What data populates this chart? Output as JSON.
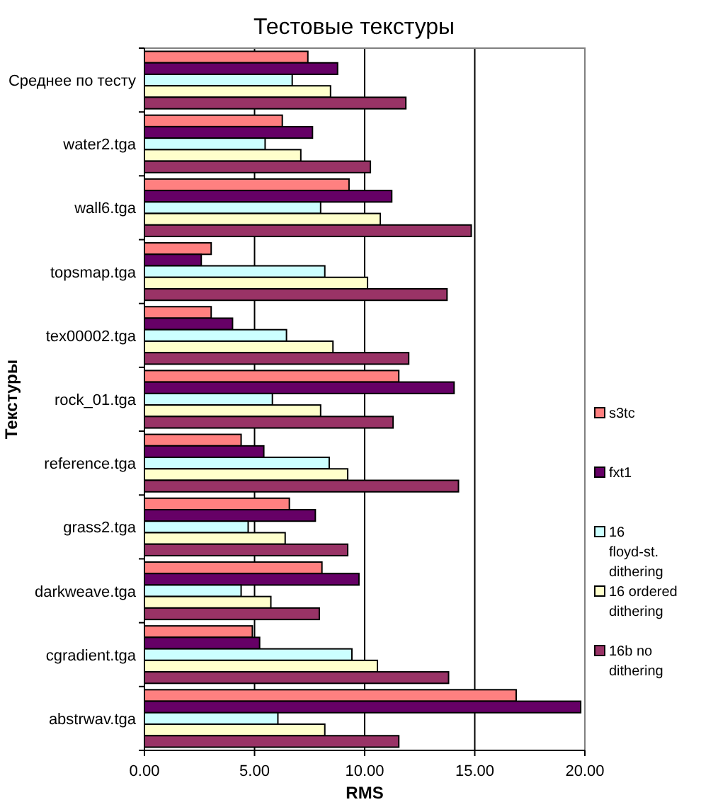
{
  "chart_data": {
    "type": "bar",
    "orientation": "horizontal",
    "title": "Тестовые текстуры",
    "xlabel": "RMS",
    "ylabel": "Текстуры",
    "categories": [
      "Среднее по тесту",
      "water2.tga",
      "wall6.tga",
      "topsmap.tga",
      "tex00002.tga",
      "rock_01.tga",
      "reference.tga",
      "grass2.tga",
      "darkweave.tga",
      "cgradient.tga",
      "abstrwav.tga"
    ],
    "series": [
      {
        "name": "s3tc",
        "color": "#ff8080",
        "values": [
          7.42,
          6.26,
          9.29,
          3.03,
          3.03,
          11.55,
          4.39,
          6.58,
          8.06,
          4.9,
          16.88
        ]
      },
      {
        "name": "fxt1",
        "color": "#660066",
        "values": [
          8.77,
          7.63,
          11.23,
          2.58,
          4.0,
          14.06,
          5.42,
          7.76,
          9.74,
          5.23,
          19.81
        ]
      },
      {
        "name": "16 floyd-st. dithering",
        "color": "#ccffff",
        "values": [
          6.71,
          5.48,
          8.0,
          8.19,
          6.45,
          5.81,
          8.39,
          4.71,
          4.39,
          9.42,
          6.06
        ]
      },
      {
        "name": "16 ordered dithering",
        "color": "#ffffcc",
        "values": [
          8.45,
          7.1,
          10.71,
          10.13,
          8.56,
          8.0,
          9.23,
          6.39,
          5.74,
          10.58,
          8.19
        ]
      },
      {
        "name": "16b no dithering",
        "color": "#993366",
        "values": [
          11.87,
          10.26,
          14.84,
          13.74,
          12.0,
          11.29,
          14.26,
          9.23,
          7.94,
          13.81,
          11.55
        ]
      }
    ],
    "xlim": [
      0,
      20
    ],
    "xticks": [
      {
        "value": 0,
        "label": "0.00"
      },
      {
        "value": 5,
        "label": "5.00"
      },
      {
        "value": 10,
        "label": "10.00"
      },
      {
        "value": 15,
        "label": "15.00"
      },
      {
        "value": 20,
        "label": "20.00"
      }
    ],
    "grid": "x",
    "legend": "right"
  }
}
